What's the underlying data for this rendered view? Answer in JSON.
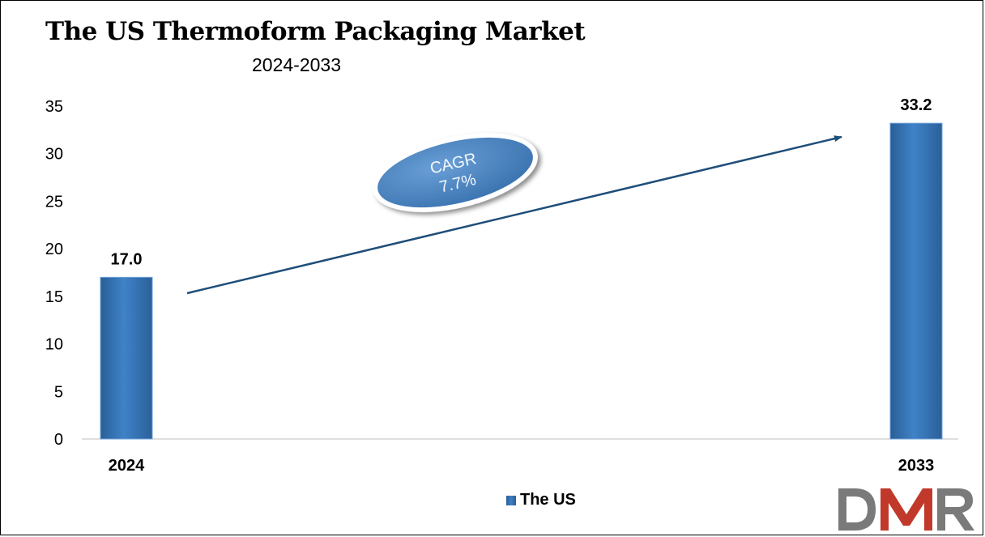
{
  "title": "The US Thermoform Packaging Market",
  "subtitle": "2024-2033",
  "cagr": {
    "label": "CAGR",
    "value": "7.7%"
  },
  "colors": {
    "bar": "#3a7bbf",
    "arrow": "#1f4e79",
    "cagr_fill": "#4a86c5",
    "logo_gray": "#7a7a7a",
    "logo_red": "#c0392b"
  },
  "logo": {
    "text": "DMR"
  },
  "chart_data": {
    "type": "bar",
    "categories": [
      "2024",
      "2033"
    ],
    "series": [
      {
        "name": "The US",
        "values": [
          17.0,
          33.2
        ]
      }
    ],
    "data_labels": [
      "17.0",
      "33.2"
    ],
    "ylim": [
      0,
      35
    ],
    "yticks": [
      0,
      5,
      10,
      15,
      20,
      25,
      30,
      35
    ],
    "grid": false,
    "legend_position": "bottom"
  }
}
